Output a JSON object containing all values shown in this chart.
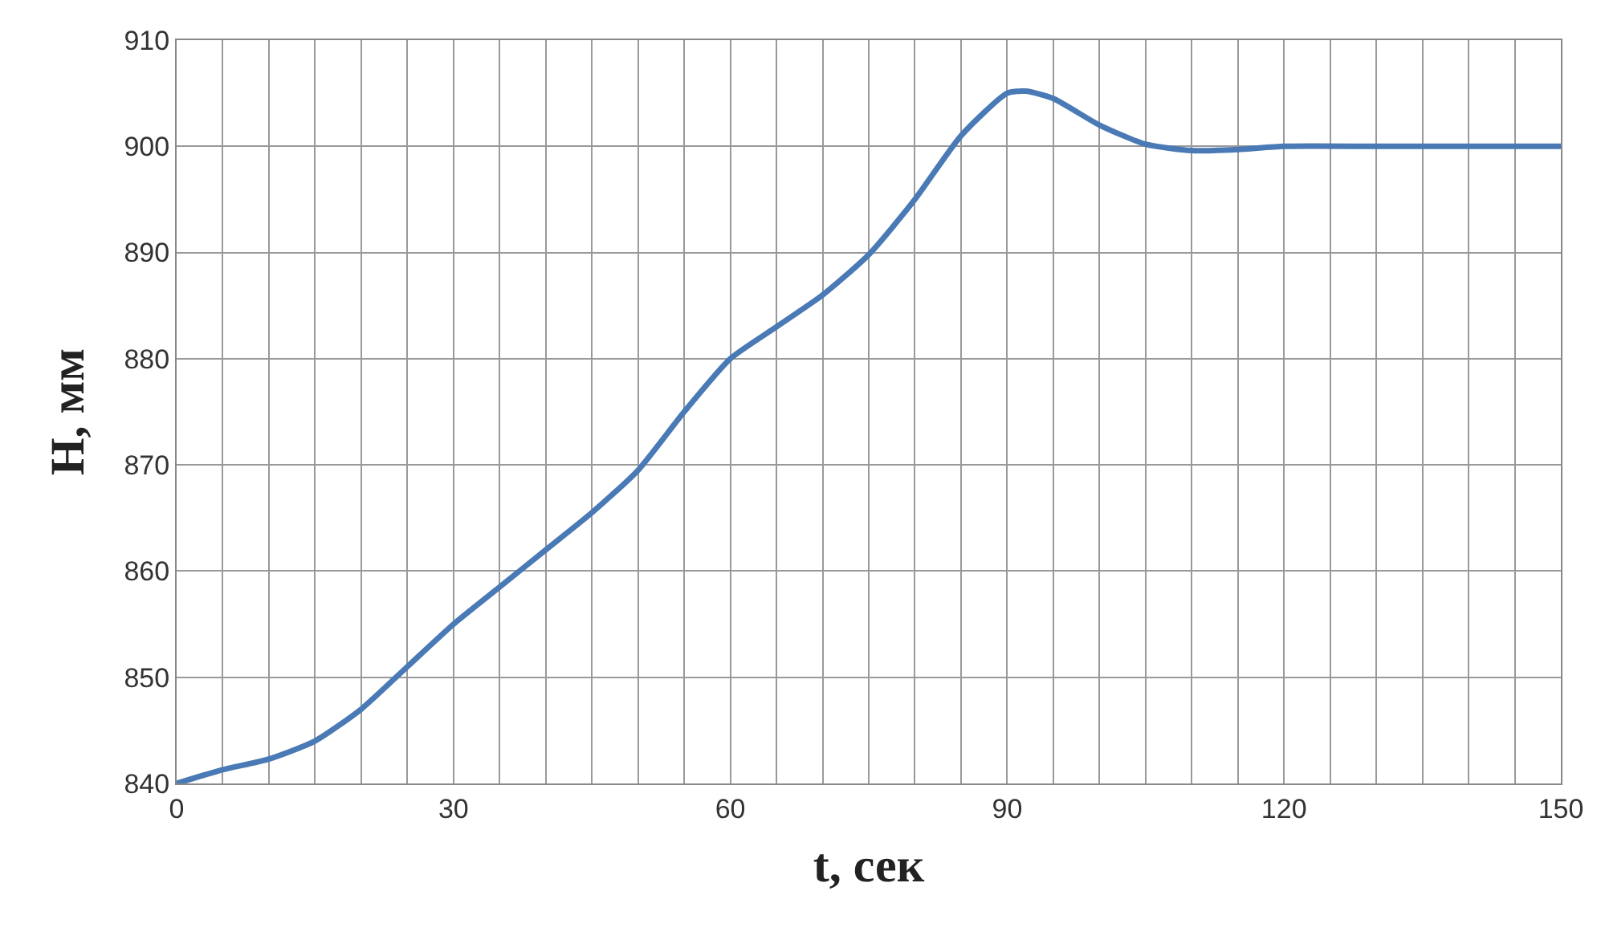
{
  "chart_data": {
    "type": "line",
    "xlabel": "t, сек",
    "ylabel": "H, мм",
    "x": [
      0,
      5,
      10,
      15,
      20,
      25,
      30,
      35,
      40,
      45,
      50,
      55,
      60,
      65,
      70,
      75,
      80,
      85,
      90,
      92,
      95,
      100,
      105,
      110,
      115,
      120,
      130,
      140,
      150
    ],
    "series": [
      {
        "color": "#4a7ab5",
        "values": [
          840,
          841.3,
          842.3,
          844,
          847,
          851,
          855,
          858.5,
          862,
          865.5,
          869.5,
          875,
          880,
          883,
          886,
          889.8,
          895,
          901,
          905,
          905.2,
          904.5,
          902,
          900.2,
          899.6,
          899.7,
          900,
          900,
          900,
          900
        ]
      }
    ],
    "xlim": [
      0,
      150
    ],
    "xticks": [
      0,
      {
        "value": 5,
        "label": null
      },
      {
        "value": 10,
        "label": null
      },
      {
        "value": 15,
        "label": null
      },
      {
        "value": 20,
        "label": null
      },
      {
        "value": 25,
        "label": null
      },
      30,
      {
        "value": 35,
        "label": null
      },
      {
        "value": 40,
        "label": null
      },
      {
        "value": 45,
        "label": null
      },
      {
        "value": 50,
        "label": null
      },
      {
        "value": 55,
        "label": null
      },
      60,
      {
        "value": 65,
        "label": null
      },
      {
        "value": 70,
        "label": null
      },
      {
        "value": 75,
        "label": null
      },
      {
        "value": 80,
        "label": null
      },
      {
        "value": 85,
        "label": null
      },
      90,
      {
        "value": 95,
        "label": null
      },
      {
        "value": 100,
        "label": null
      },
      {
        "value": 105,
        "label": null
      },
      {
        "value": 110,
        "label": null
      },
      {
        "value": 115,
        "label": null
      },
      120,
      {
        "value": 125,
        "label": null
      },
      {
        "value": 130,
        "label": null
      },
      {
        "value": 135,
        "label": null
      },
      {
        "value": 140,
        "label": null
      },
      {
        "value": 145,
        "label": null
      },
      150
    ],
    "ylim": [
      840,
      910
    ],
    "yticks": [
      840,
      850,
      860,
      870,
      880,
      890,
      900,
      910
    ],
    "grid": true,
    "marker": "none",
    "line_style": "solid",
    "legend": false
  }
}
